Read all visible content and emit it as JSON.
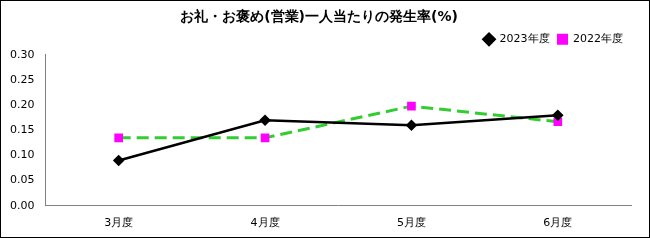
{
  "chart_data": {
    "type": "line",
    "title": "お礼・お褒め(営業)一人当たりの発生率(%)",
    "categories": [
      "3月度",
      "4月度",
      "5月度",
      "6月度"
    ],
    "series": [
      {
        "name": "2023年度",
        "color": "#000000",
        "marker": "diamond",
        "line_style": "solid",
        "values": [
          0.09,
          0.17,
          0.16,
          0.18
        ]
      },
      {
        "name": "2022年度",
        "color": "#33cc33",
        "marker": "square",
        "line_style": "dashed",
        "values": [
          0.135,
          0.135,
          0.198,
          0.167
        ]
      }
    ],
    "ylim": [
      0,
      0.3
    ],
    "yticks": [
      {
        "value": 0,
        "label": "0.00"
      },
      {
        "value": 0.05,
        "label": "0.05"
      },
      {
        "value": 0.1,
        "label": "0.10"
      },
      {
        "value": 0.15,
        "label": "0.15"
      },
      {
        "value": 0.2,
        "label": "0.20"
      },
      {
        "value": 0.25,
        "label": "0.25"
      },
      {
        "value": 0.3,
        "label": "0.30"
      }
    ],
    "grid": false,
    "legend": "top-right"
  }
}
